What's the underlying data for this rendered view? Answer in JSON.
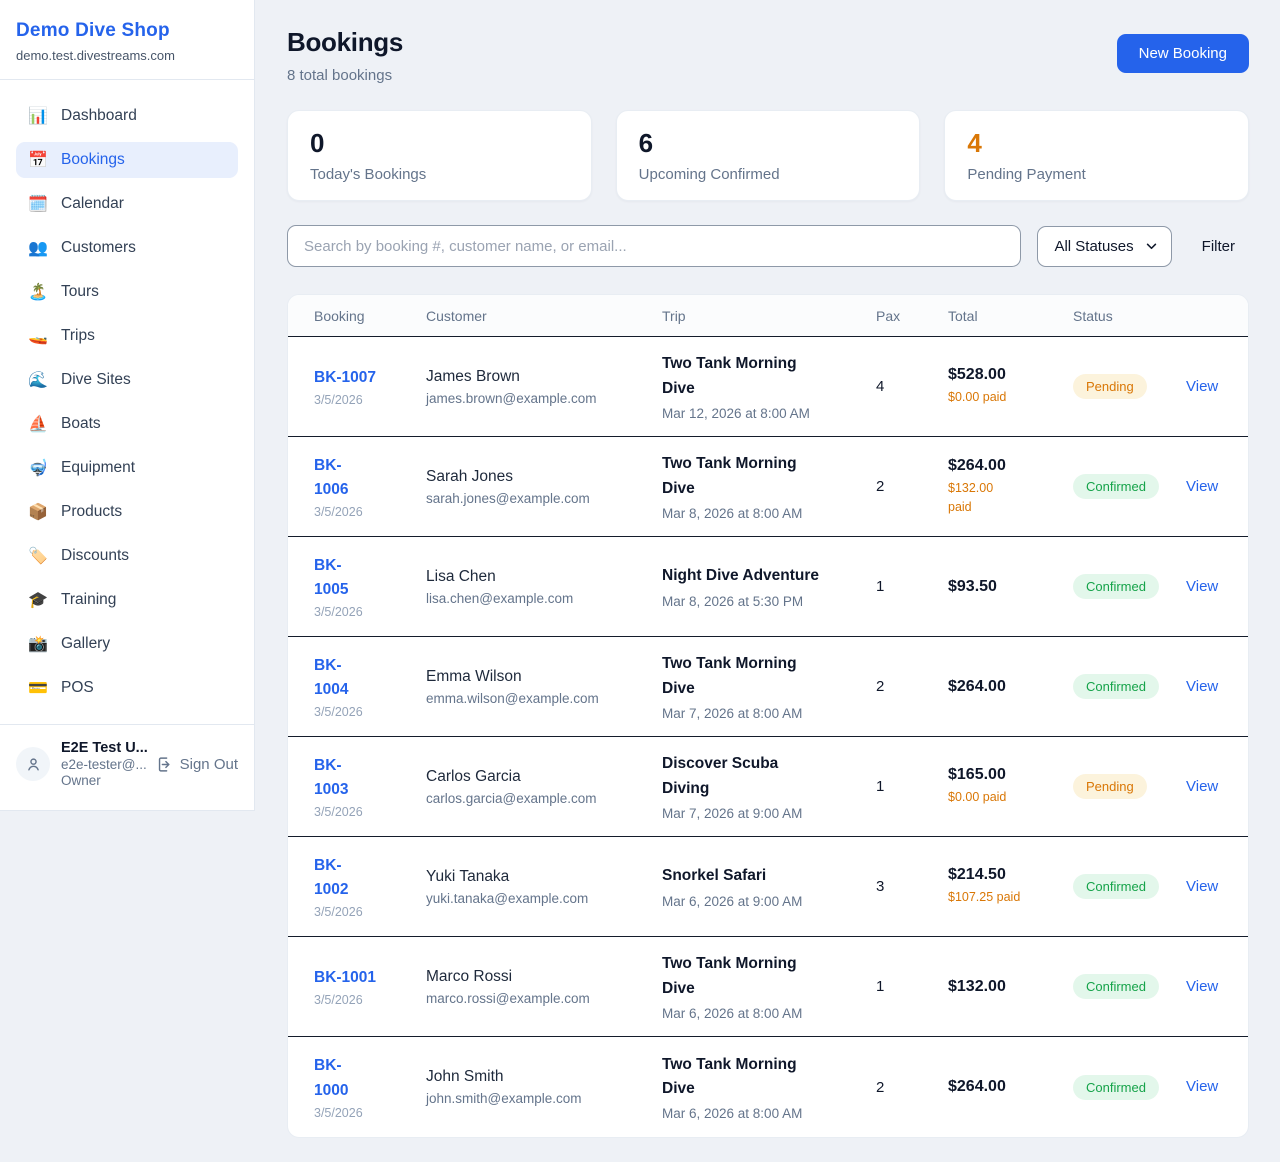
{
  "colors": {
    "accent": "#2563eb",
    "pending_text": "#d97706",
    "pending_bg": "#fcf3dc",
    "confirmed_text": "#16a34a",
    "confirmed_bg": "#e3f7eb"
  },
  "sidebar": {
    "brand": {
      "name": "Demo Dive Shop",
      "domain": "demo.test.divestreams.com"
    },
    "nav": [
      {
        "key": "dashboard",
        "label": "Dashboard",
        "icon": "📊",
        "icon_name": "bar-chart-icon",
        "active": false
      },
      {
        "key": "bookings",
        "label": "Bookings",
        "icon": "📅",
        "icon_name": "calendar-icon",
        "active": true
      },
      {
        "key": "calendar",
        "label": "Calendar",
        "icon": "🗓️",
        "icon_name": "spiral-calendar-icon",
        "active": false
      },
      {
        "key": "customers",
        "label": "Customers",
        "icon": "👥",
        "icon_name": "people-icon",
        "active": false
      },
      {
        "key": "tours",
        "label": "Tours",
        "icon": "🏝️",
        "icon_name": "island-icon",
        "active": false
      },
      {
        "key": "trips",
        "label": "Trips",
        "icon": "🚤",
        "icon_name": "speedboat-icon",
        "active": false
      },
      {
        "key": "dive-sites",
        "label": "Dive Sites",
        "icon": "🌊",
        "icon_name": "wave-icon",
        "active": false
      },
      {
        "key": "boats",
        "label": "Boats",
        "icon": "⛵",
        "icon_name": "sailboat-icon",
        "active": false
      },
      {
        "key": "equipment",
        "label": "Equipment",
        "icon": "🤿",
        "icon_name": "diving-mask-icon",
        "active": false
      },
      {
        "key": "products",
        "label": "Products",
        "icon": "📦",
        "icon_name": "package-icon",
        "active": false
      },
      {
        "key": "discounts",
        "label": "Discounts",
        "icon": "🏷️",
        "icon_name": "label-tag-icon",
        "active": false
      },
      {
        "key": "training",
        "label": "Training",
        "icon": "🎓",
        "icon_name": "graduation-cap-icon",
        "active": false
      },
      {
        "key": "gallery",
        "label": "Gallery",
        "icon": "📸",
        "icon_name": "camera-icon",
        "active": false
      },
      {
        "key": "pos",
        "label": "POS",
        "icon": "💳",
        "icon_name": "credit-card-icon",
        "active": false
      }
    ],
    "user": {
      "name": "E2E Test U...",
      "email": "e2e-tester@...",
      "role": "Owner",
      "sign_out_label": "Sign Out"
    }
  },
  "header": {
    "title": "Bookings",
    "subtitle": "8 total bookings",
    "new_booking_label": "New Booking"
  },
  "stats": [
    {
      "value": "0",
      "label": "Today's Bookings",
      "value_color": "#0f172a"
    },
    {
      "value": "6",
      "label": "Upcoming Confirmed",
      "value_color": "#0f172a"
    },
    {
      "value": "4",
      "label": "Pending Payment",
      "value_color": "#d97706"
    }
  ],
  "controls": {
    "search_placeholder": "Search by booking #, customer name, or email...",
    "status_filter_value": "All Statuses",
    "filter_label": "Filter"
  },
  "table": {
    "columns": [
      "Booking",
      "Customer",
      "Trip",
      "Pax",
      "Total",
      "Status"
    ],
    "view_label": "View",
    "rows": [
      {
        "id_lines": [
          "BK-1007"
        ],
        "date": "3/5/2026",
        "customer": "James Brown",
        "email": "james.brown@example.com",
        "trip": "Two Tank Morning Dive",
        "trip_datetime": "Mar 12, 2026 at 8:00 AM",
        "pax": "4",
        "total": "$528.00",
        "paid_lines": [
          "$0.00 paid"
        ],
        "status": "Pending"
      },
      {
        "id_lines": [
          "BK-",
          "1006"
        ],
        "date": "3/5/2026",
        "customer": "Sarah Jones",
        "email": "sarah.jones@example.com",
        "trip": "Two Tank Morning Dive",
        "trip_datetime": "Mar 8, 2026 at 8:00 AM",
        "pax": "2",
        "total": "$264.00",
        "paid_lines": [
          "$132.00",
          "paid"
        ],
        "status": "Confirmed"
      },
      {
        "id_lines": [
          "BK-",
          "1005"
        ],
        "date": "3/5/2026",
        "customer": "Lisa Chen",
        "email": "lisa.chen@example.com",
        "trip": "Night Dive Adventure",
        "trip_datetime": "Mar 8, 2026 at 5:30 PM",
        "pax": "1",
        "total": "$93.50",
        "paid_lines": [],
        "status": "Confirmed"
      },
      {
        "id_lines": [
          "BK-",
          "1004"
        ],
        "date": "3/5/2026",
        "customer": "Emma Wilson",
        "email": "emma.wilson@example.com",
        "trip": "Two Tank Morning Dive",
        "trip_datetime": "Mar 7, 2026 at 8:00 AM",
        "pax": "2",
        "total": "$264.00",
        "paid_lines": [],
        "status": "Confirmed"
      },
      {
        "id_lines": [
          "BK-",
          "1003"
        ],
        "date": "3/5/2026",
        "customer": "Carlos Garcia",
        "email": "carlos.garcia@example.com",
        "trip": "Discover Scuba Diving",
        "trip_datetime": "Mar 7, 2026 at 9:00 AM",
        "pax": "1",
        "total": "$165.00",
        "paid_lines": [
          "$0.00 paid"
        ],
        "status": "Pending"
      },
      {
        "id_lines": [
          "BK-",
          "1002"
        ],
        "date": "3/5/2026",
        "customer": "Yuki Tanaka",
        "email": "yuki.tanaka@example.com",
        "trip": "Snorkel Safari",
        "trip_datetime": "Mar 6, 2026 at 9:00 AM",
        "pax": "3",
        "total": "$214.50",
        "paid_lines": [
          "$107.25 paid"
        ],
        "status": "Confirmed"
      },
      {
        "id_lines": [
          "BK-1001"
        ],
        "date": "3/5/2026",
        "customer": "Marco Rossi",
        "email": "marco.rossi@example.com",
        "trip": "Two Tank Morning Dive",
        "trip_datetime": "Mar 6, 2026 at 8:00 AM",
        "pax": "1",
        "total": "$132.00",
        "paid_lines": [],
        "status": "Confirmed"
      },
      {
        "id_lines": [
          "BK-",
          "1000"
        ],
        "date": "3/5/2026",
        "customer": "John Smith",
        "email": "john.smith@example.com",
        "trip": "Two Tank Morning Dive",
        "trip_datetime": "Mar 6, 2026 at 8:00 AM",
        "pax": "2",
        "total": "$264.00",
        "paid_lines": [],
        "status": "Confirmed"
      }
    ]
  }
}
